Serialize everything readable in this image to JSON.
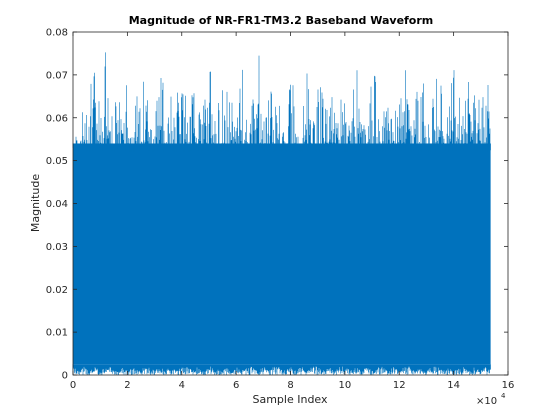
{
  "chart_data": {
    "type": "area",
    "title": "Magnitude of NR-FR1-TM3.2 Baseband Waveform",
    "xlabel": "Sample Index",
    "ylabel": "Magnitude",
    "xlim": [
      0,
      160000
    ],
    "ylim": [
      0,
      0.08
    ],
    "x_exponent_label": "×10",
    "x_exponent_power": "4",
    "x_ticks": [
      0,
      20000,
      40000,
      60000,
      80000,
      100000,
      120000,
      140000,
      160000
    ],
    "x_tick_labels": [
      "0",
      "2",
      "4",
      "6",
      "8",
      "10",
      "12",
      "14",
      "16"
    ],
    "y_ticks": [
      0,
      0.01,
      0.02,
      0.03,
      0.04,
      0.05,
      0.06,
      0.07,
      0.08
    ],
    "y_tick_labels": [
      "0",
      "0.01",
      "0.02",
      "0.03",
      "0.04",
      "0.05",
      "0.06",
      "0.07",
      "0.08"
    ],
    "series_color": "#0072bd",
    "sample_count": 153600,
    "envelope_x": [
      0,
      2000,
      4000,
      6000,
      8000,
      10000,
      12000,
      14000,
      16000,
      18000,
      20000,
      22000,
      24000,
      26000,
      28000,
      30000,
      32000,
      34000,
      36000,
      38000,
      40000,
      42000,
      44000,
      46000,
      48000,
      50000,
      52000,
      54000,
      56000,
      58000,
      60000,
      62000,
      64000,
      66000,
      68000,
      70000,
      72000,
      74000,
      76000,
      78000,
      80000,
      82000,
      84000,
      86000,
      88000,
      90000,
      92000,
      94000,
      96000,
      98000,
      100000,
      102000,
      104000,
      106000,
      108000,
      110000,
      112000,
      114000,
      116000,
      118000,
      120000,
      122000,
      124000,
      126000,
      128000,
      130000,
      132000,
      134000,
      136000,
      138000,
      140000,
      142000,
      144000,
      146000,
      148000,
      150000,
      152000,
      153600
    ],
    "envelope_max": [
      0.067,
      0.055,
      0.064,
      0.078,
      0.071,
      0.066,
      0.077,
      0.062,
      0.065,
      0.074,
      0.068,
      0.063,
      0.066,
      0.073,
      0.061,
      0.064,
      0.078,
      0.067,
      0.065,
      0.072,
      0.069,
      0.066,
      0.074,
      0.063,
      0.065,
      0.077,
      0.062,
      0.064,
      0.073,
      0.066,
      0.068,
      0.075,
      0.065,
      0.067,
      0.078,
      0.063,
      0.066,
      0.072,
      0.064,
      0.069,
      0.077,
      0.066,
      0.062,
      0.074,
      0.065,
      0.067,
      0.076,
      0.064,
      0.068,
      0.077,
      0.066,
      0.063,
      0.074,
      0.065,
      0.064,
      0.078,
      0.063,
      0.066,
      0.072,
      0.065,
      0.067,
      0.077,
      0.064,
      0.066,
      0.073,
      0.063,
      0.065,
      0.078,
      0.064,
      0.067,
      0.073,
      0.066,
      0.064,
      0.077,
      0.063,
      0.066,
      0.072,
      0.064
    ],
    "envelope_min": [
      0.002,
      0.001,
      0.002,
      0.001,
      0.002,
      0.001,
      0.002,
      0.002,
      0.001,
      0.002,
      0.001,
      0.002,
      0.001,
      0.002,
      0.002,
      0.001,
      0.002,
      0.001,
      0.002,
      0.001,
      0.002,
      0.002,
      0.001,
      0.002,
      0.001,
      0.002,
      0.002,
      0.001,
      0.002,
      0.001,
      0.002,
      0.001,
      0.002,
      0.002,
      0.001,
      0.002,
      0.001,
      0.002,
      0.002,
      0.001,
      0.002,
      0.001,
      0.002,
      0.001,
      0.002,
      0.002,
      0.001,
      0.002,
      0.001,
      0.002,
      0.002,
      0.001,
      0.002,
      0.001,
      0.002,
      0.001,
      0.002,
      0.002,
      0.001,
      0.002,
      0.001,
      0.002,
      0.002,
      0.001,
      0.002,
      0.001,
      0.002,
      0.002,
      0.001,
      0.002,
      0.001,
      0.002,
      0.002,
      0.001,
      0.002,
      0.001,
      0.002,
      0.002
    ],
    "grid": false,
    "legend": "none"
  }
}
